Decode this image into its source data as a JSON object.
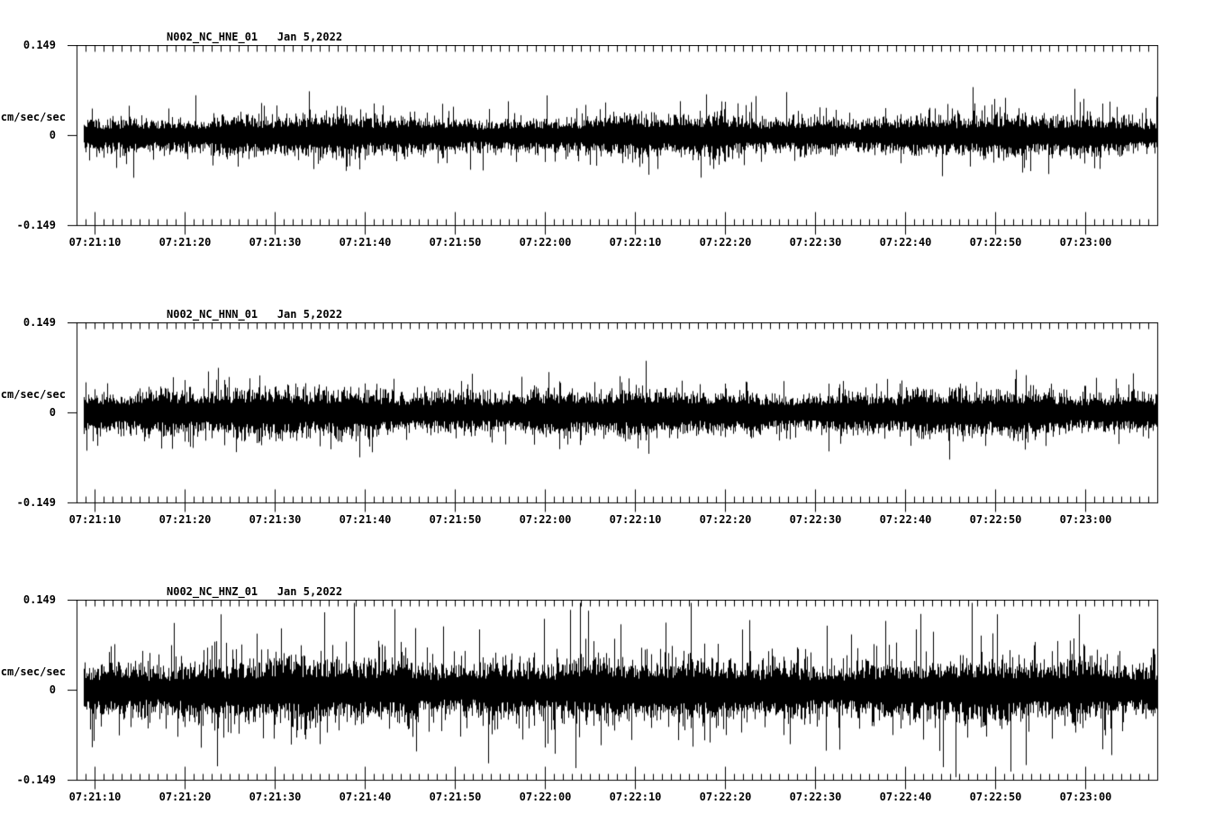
{
  "page": {
    "background": "#ffffff",
    "foreground": "#000000"
  },
  "chart_data": [
    {
      "type": "line",
      "subtype": "seismogram-trace",
      "title": "N002_NC_HNE_01   Jan 5,2022",
      "station": "N002_NC_HNE_01",
      "date": "Jan 5,2022",
      "ylabel": "cm/sec/sec",
      "ylim": [
        -0.149,
        0.149
      ],
      "yticks": [
        0.149,
        0,
        -0.149
      ],
      "ytick_labels": [
        "0.149",
        "0",
        "-0.149"
      ],
      "x_tick_labels": [
        "07:21:10",
        "07:21:20",
        "07:21:30",
        "07:21:40",
        "07:21:50",
        "07:22:00",
        "07:22:10",
        "07:22:20",
        "07:22:30",
        "07:22:40",
        "07:22:50",
        "07:23:00"
      ],
      "x_minor_tick_seconds": 1,
      "x_major_tick_seconds": 10,
      "grid": false,
      "legend": null,
      "waveform": {
        "mean": 0.0,
        "noise_band": 0.024,
        "typical_peak": 0.055,
        "max_peak": 0.078,
        "spike_rate": 0.25,
        "up_bias": 1.0,
        "start_boost": 0.0,
        "seed": 11
      }
    },
    {
      "type": "line",
      "subtype": "seismogram-trace",
      "title": "N002_NC_HNN_01   Jan 5,2022",
      "station": "N002_NC_HNN_01",
      "date": "Jan 5,2022",
      "ylabel": "cm/sec/sec",
      "ylim": [
        -0.149,
        0.149
      ],
      "yticks": [
        0.149,
        0,
        -0.149
      ],
      "ytick_labels": [
        "0.149",
        "0",
        "-0.149"
      ],
      "x_tick_labels": [
        "07:21:10",
        "07:21:20",
        "07:21:30",
        "07:21:40",
        "07:21:50",
        "07:22:00",
        "07:22:10",
        "07:22:20",
        "07:22:30",
        "07:22:40",
        "07:22:50",
        "07:23:00"
      ],
      "x_minor_tick_seconds": 1,
      "x_major_tick_seconds": 10,
      "grid": false,
      "legend": null,
      "waveform": {
        "mean": 0.0,
        "noise_band": 0.027,
        "typical_peak": 0.055,
        "max_peak": 0.072,
        "spike_rate": 0.25,
        "up_bias": 1.0,
        "start_boost": 0.22,
        "seed": 22
      }
    },
    {
      "type": "line",
      "subtype": "seismogram-trace",
      "title": "N002_NC_HNZ_01   Jan 5,2022",
      "station": "N002_NC_HNZ_01",
      "date": "Jan 5,2022",
      "ylabel": "cm/sec/sec",
      "ylim": [
        -0.149,
        0.149
      ],
      "yticks": [
        0.149,
        0,
        -0.149
      ],
      "ytick_labels": [
        "0.149",
        "0",
        "-0.149"
      ],
      "x_tick_labels": [
        "07:21:10",
        "07:21:20",
        "07:21:30",
        "07:21:40",
        "07:21:50",
        "07:22:00",
        "07:22:10",
        "07:22:20",
        "07:22:30",
        "07:22:40",
        "07:22:50",
        "07:23:00"
      ],
      "x_minor_tick_seconds": 1,
      "x_major_tick_seconds": 10,
      "grid": false,
      "legend": null,
      "waveform": {
        "mean": 0.0,
        "noise_band": 0.036,
        "typical_peak": 0.08,
        "max_peak": 0.135,
        "spike_rate": 0.55,
        "up_bias": 1.1,
        "start_boost": 0.0,
        "seed": 33
      }
    }
  ]
}
